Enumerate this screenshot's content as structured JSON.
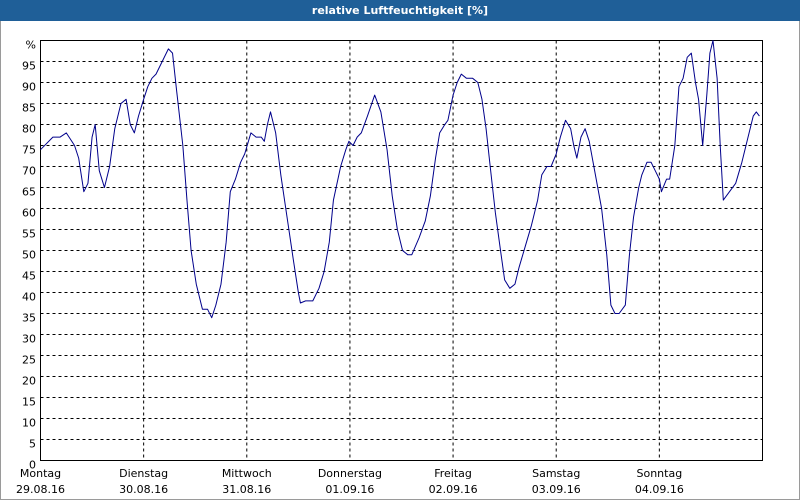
{
  "chart_data": {
    "type": "line",
    "title": "relative Luftfeuchtigkeit [%]",
    "xlim": [
      0,
      7
    ],
    "xticks": [
      {
        "value": 0,
        "label": "Montag"
      },
      {
        "value": 1,
        "label": "Dienstag"
      },
      {
        "value": 2,
        "label": "Mittwoch"
      },
      {
        "value": 3,
        "label": "Donnerstag"
      },
      {
        "value": 4,
        "label": "Freitag"
      },
      {
        "value": 5,
        "label": "Samstag"
      },
      {
        "value": 6,
        "label": "Sonntag"
      }
    ],
    "xtick_dates": [
      "29.08.16",
      "30.08.16",
      "31.08.16",
      "01.09.16",
      "02.09.16",
      "03.09.16",
      "04.09.16"
    ],
    "ylim": [
      0,
      100
    ],
    "yticks": [
      0,
      5,
      10,
      15,
      20,
      25,
      30,
      35,
      40,
      45,
      50,
      55,
      60,
      65,
      70,
      75,
      80,
      85,
      90,
      95,
      {
        "value": 100,
        "label": "%"
      }
    ],
    "grid": true,
    "x": [
      0,
      0.12,
      0.19,
      0.25,
      0.33,
      0.37,
      0.42,
      0.46,
      0.5,
      0.53,
      0.57,
      0.62,
      0.67,
      0.72,
      0.78,
      0.83,
      0.87,
      0.91,
      0.95,
      1,
      1.04,
      1.08,
      1.12,
      1.18,
      1.24,
      1.28,
      1.32,
      1.38,
      1.42,
      1.46,
      1.51,
      1.57,
      1.62,
      1.66,
      1.7,
      1.75,
      1.8,
      1.84,
      1.89,
      1.94,
      1.98,
      2.04,
      2.09,
      2.14,
      2.17,
      2.2,
      2.23,
      2.28,
      2.33,
      2.39,
      2.45,
      2.5,
      2.52,
      2.57,
      2.64,
      2.7,
      2.75,
      2.8,
      2.84,
      2.91,
      2.96,
      2.99,
      3.03,
      3.07,
      3.11,
      3.17,
      3.24,
      3.3,
      3.36,
      3.41,
      3.46,
      3.51,
      3.56,
      3.6,
      3.67,
      3.73,
      3.78,
      3.83,
      3.87,
      3.92,
      3.95,
      4,
      4.04,
      4.08,
      4.13,
      4.19,
      4.24,
      4.28,
      4.32,
      4.36,
      4.41,
      4.46,
      4.5,
      4.55,
      4.6,
      4.64,
      4.7,
      4.76,
      4.82,
      4.86,
      4.91,
      4.95,
      5,
      5.04,
      5.09,
      5.14,
      5.17,
      5.2,
      5.24,
      5.28,
      5.32,
      5.38,
      5.44,
      5.49,
      5.53,
      5.57,
      5.61,
      5.67,
      5.71,
      5.75,
      5.8,
      5.83,
      5.88,
      5.92,
      5.96,
      6,
      6.02,
      6.07,
      6.1,
      6.15,
      6.19,
      6.23,
      6.27,
      6.31,
      6.35,
      6.38,
      6.42,
      6.46,
      6.49,
      6.52,
      6.56,
      6.59,
      6.62,
      6.68,
      6.74,
      6.8,
      6.85,
      6.91,
      6.94,
      6.97
    ],
    "series": [
      {
        "color": "#00008b",
        "values": [
          74,
          77,
          77,
          78,
          75,
          72,
          64,
          66,
          77,
          80,
          69,
          65,
          70,
          79,
          85,
          86,
          80,
          78,
          82,
          86,
          89,
          91,
          92,
          95,
          98,
          97,
          88,
          75,
          62,
          50,
          42,
          36,
          36,
          34,
          37,
          42,
          52,
          64,
          67,
          71,
          73,
          78,
          77,
          77,
          76,
          80,
          83,
          78,
          68,
          58,
          48,
          40,
          37.5,
          38,
          38,
          41,
          45,
          52,
          62,
          70,
          74,
          76,
          75,
          77,
          78,
          82,
          87,
          83,
          74,
          63,
          55,
          50,
          49,
          49,
          53,
          57,
          63,
          72,
          78,
          80,
          81,
          87,
          90,
          92,
          91,
          91,
          90,
          86,
          79,
          70,
          59,
          50,
          43,
          41,
          42,
          46,
          51,
          56,
          62,
          68,
          70,
          70,
          73,
          77,
          81,
          79,
          75,
          72,
          77,
          79,
          76,
          68,
          60,
          49,
          37,
          35,
          35,
          37,
          49,
          58,
          65,
          68,
          71,
          71,
          69,
          67,
          64,
          67,
          67,
          75,
          89,
          91,
          96,
          97,
          90,
          86,
          75,
          87,
          97,
          100,
          91,
          75,
          62,
          64,
          66,
          71,
          76,
          82,
          83,
          82
        ]
      }
    ]
  }
}
